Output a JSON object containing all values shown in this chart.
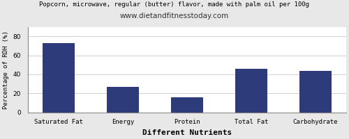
{
  "title_line1": "Popcorn, microwave, regular (butter) flavor, made with palm oil per 100g",
  "title_line2": "www.dietandfitnesstoday.com",
  "categories": [
    "Saturated Fat",
    "Energy",
    "Protein",
    "Total Fat",
    "Carbohydrate"
  ],
  "values": [
    73,
    27,
    16,
    46,
    44
  ],
  "bar_color": "#2e3b7a",
  "xlabel": "Different Nutrients",
  "ylabel": "Percentage of RDH (%)",
  "ylim": [
    0,
    90
  ],
  "yticks": [
    0,
    20,
    40,
    60,
    80
  ],
  "fig_bg_color": "#e8e8e8",
  "plot_bg_color": "#ffffff",
  "title1_fontsize": 6.5,
  "title2_fontsize": 7.5,
  "tick_fontsize": 6.5,
  "xlabel_fontsize": 8,
  "ylabel_fontsize": 6.5,
  "grid_color": "#c8c8c8",
  "border_color": "#888888"
}
